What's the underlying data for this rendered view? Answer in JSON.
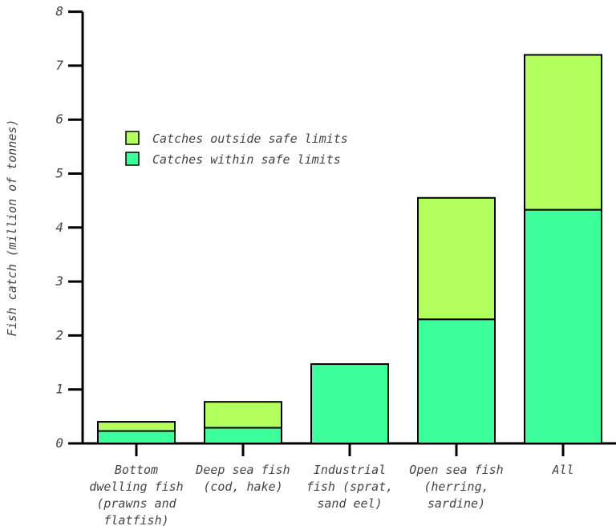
{
  "chart_data": {
    "type": "bar",
    "stacked": true,
    "title": "",
    "xlabel": "",
    "ylabel": "Fish catch (million of tonnes)",
    "ylim": [
      0,
      8
    ],
    "yticks": [
      "0",
      "1",
      "2",
      "3",
      "4",
      "5",
      "6",
      "7",
      "8"
    ],
    "categories": [
      [
        "Bottom",
        "dwelling fish",
        "(prawns and",
        "flatfish)"
      ],
      [
        "Deep sea fish",
        "(cod, hake)"
      ],
      [
        "Industrial",
        "fish (sprat,",
        "sand eel)"
      ],
      [
        "Open sea fish",
        "(herring,",
        "sardine)"
      ],
      [
        "All"
      ]
    ],
    "series": [
      {
        "name": "Catches within safe limits",
        "color": "#3cff9c",
        "values": [
          0.23,
          0.29,
          1.47,
          2.3,
          4.33
        ]
      },
      {
        "name": "Catches outside safe limits",
        "color": "#b2ff5e",
        "values": [
          0.17,
          0.48,
          0.0,
          2.25,
          2.87
        ]
      }
    ],
    "legend": {
      "placement": "upper-left",
      "order": [
        1,
        0
      ]
    },
    "grid": false
  }
}
